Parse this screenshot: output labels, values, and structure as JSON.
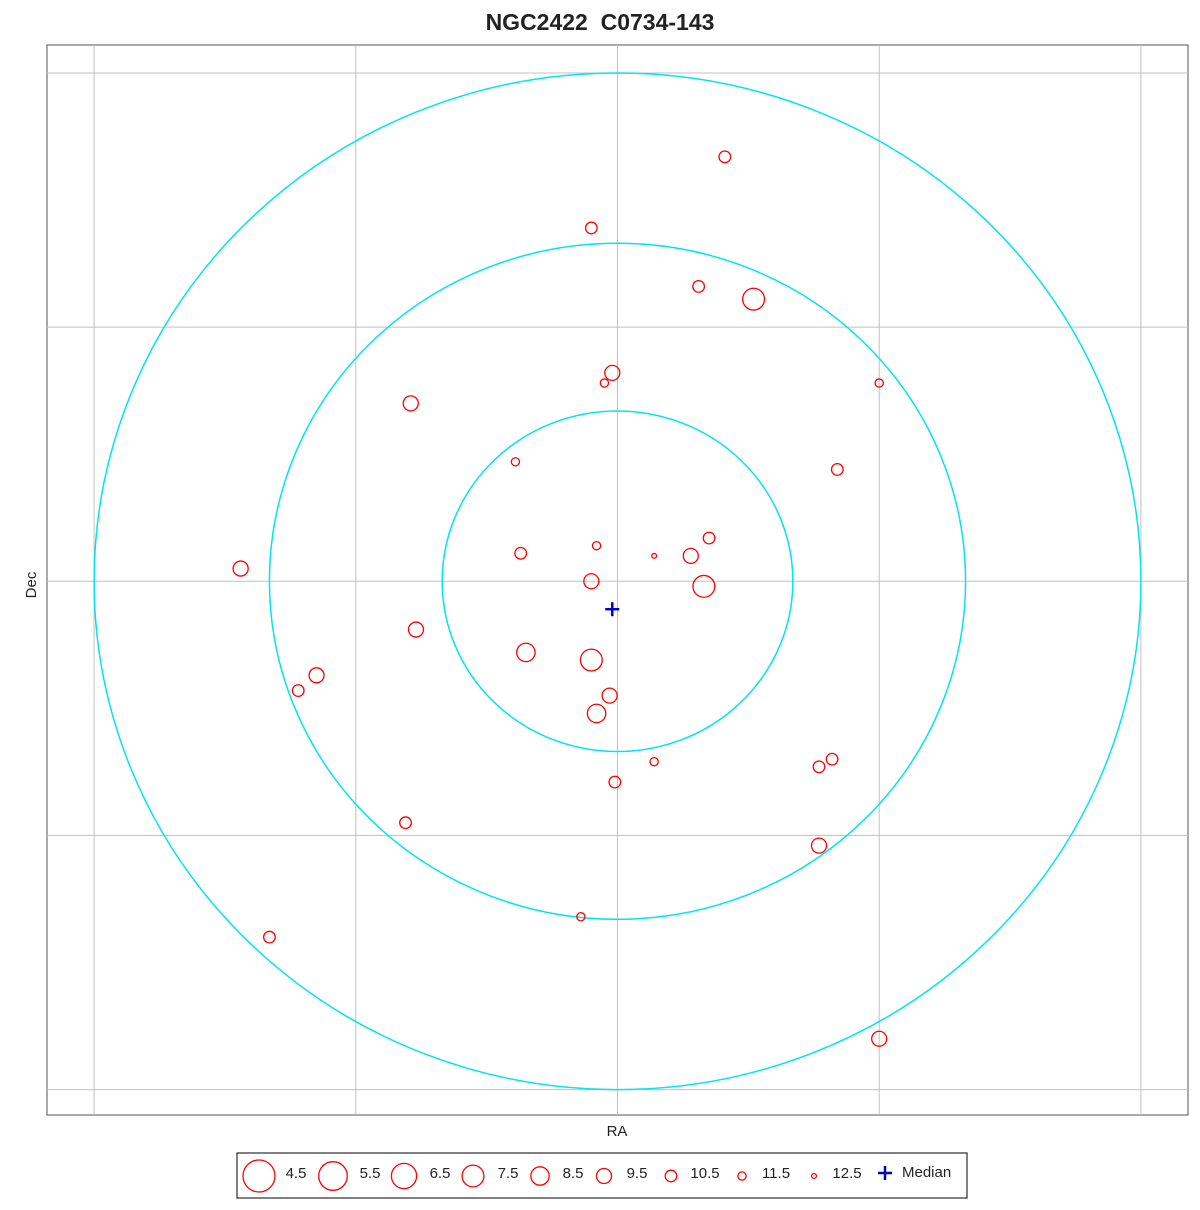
{
  "chart_data": {
    "type": "scatter",
    "title": "NGC2422  C0734-143",
    "xlabel": "RA",
    "ylabel": "Dec",
    "xlim": [
      -2.18,
      2.18
    ],
    "ylim": [
      -2.1,
      2.11
    ],
    "xticks": [
      -2,
      -1,
      0,
      1,
      2
    ],
    "yticks": [
      -2,
      -1,
      0,
      1,
      2
    ],
    "grid": true,
    "color": "#ff0000",
    "ring_color": "#00e5ee",
    "rings": [
      0.67,
      1.33,
      2.0
    ],
    "x": [
      0.41,
      -0.1,
      0.31,
      0.52,
      -0.02,
      -0.05,
      -0.79,
      1.0,
      -0.39,
      0.84,
      0.35,
      -0.08,
      0.14,
      -0.37,
      0.28,
      -1.44,
      -0.1,
      0.33,
      -0.77,
      -0.35,
      -0.1,
      -1.15,
      -1.22,
      -0.03,
      -0.08,
      0.14,
      0.82,
      0.77,
      -0.01,
      -0.81,
      0.77,
      -0.14,
      -1.33,
      1.0
    ],
    "y": [
      1.67,
      1.39,
      1.16,
      1.11,
      0.82,
      0.78,
      0.7,
      0.78,
      0.47,
      0.44,
      0.17,
      0.14,
      0.1,
      0.11,
      0.1,
      0.05,
      0.0,
      -0.02,
      -0.19,
      -0.28,
      -0.31,
      -0.37,
      -0.43,
      -0.45,
      -0.52,
      -0.71,
      -0.7,
      -0.73,
      -0.79,
      -0.95,
      -1.04,
      -1.32,
      -1.4,
      -1.8
    ],
    "mag": [
      10.5,
      10.5,
      10.5,
      7.5,
      9.5,
      11.5,
      9.5,
      11.5,
      11.5,
      10.5,
      10.5,
      11.5,
      12.5,
      10.5,
      9.5,
      9.5,
      9.5,
      7.5,
      9.5,
      8.5,
      7.5,
      9.5,
      10.5,
      9.5,
      8.5,
      11.5,
      10.5,
      10.5,
      10.5,
      10.5,
      9.5,
      11.5,
      10.5,
      9.5
    ],
    "median": {
      "label": "Median",
      "x": -0.02,
      "y": -0.11,
      "color": "#0000cc"
    },
    "legend_mags": [
      4.5,
      5.5,
      6.5,
      7.5,
      8.5,
      9.5,
      10.5,
      11.5,
      12.5
    ]
  }
}
